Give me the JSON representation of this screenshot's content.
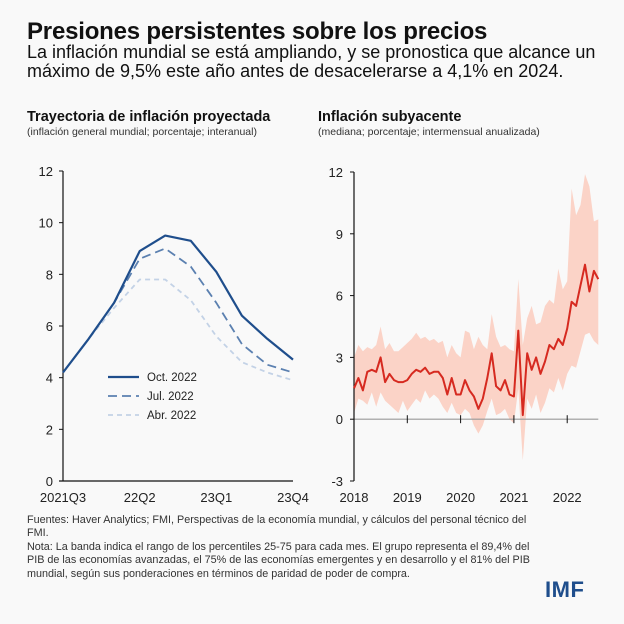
{
  "header": {
    "title": "Presiones persistentes sobre los precios",
    "subtitle": "La inflación mundial se está ampliando, y se pronostica que alcance un máximo de 9,5% este año antes de desacelerarse a 4,1% en 2024."
  },
  "colors": {
    "oct": "#1f4e8c",
    "jul": "#5b80b0",
    "abr": "#c3d2e6",
    "core_line": "#d62a20",
    "core_band": "#fbd3c7",
    "axis": "#111111",
    "zero_line": "#999999",
    "logo": "#1f4e8c"
  },
  "chart_data": [
    {
      "type": "line",
      "title": "Trayectoria de inflación proyectada",
      "subtitle": "(inflación general mundial; porcentaje; interanual)",
      "xlabel": "",
      "ylabel": "",
      "x": [
        "2021Q3",
        "2021Q4",
        "2022Q1",
        "2022Q2",
        "2022Q3",
        "2022Q4",
        "2023Q1",
        "2023Q2",
        "2023Q3",
        "2023Q4"
      ],
      "x_tick_labels": [
        {
          "index": 0,
          "label": "2021Q3"
        },
        {
          "index": 3,
          "label": "22Q2"
        },
        {
          "index": 6,
          "label": "23Q1"
        },
        {
          "index": 9,
          "label": "23Q4"
        }
      ],
      "ylim": [
        0,
        12
      ],
      "y_ticks": [
        0,
        2,
        4,
        6,
        8,
        10,
        12
      ],
      "grid": false,
      "legend_position": "bottom-left",
      "series": [
        {
          "name": "Oct. 2022",
          "style": "solid",
          "values": [
            4.2,
            5.5,
            6.9,
            8.9,
            9.5,
            9.3,
            8.1,
            6.4,
            5.5,
            4.7
          ]
        },
        {
          "name": "Jul. 2022",
          "style": "long-dash",
          "values": [
            4.2,
            5.5,
            6.9,
            8.6,
            9.0,
            8.3,
            6.9,
            5.3,
            4.5,
            4.2
          ]
        },
        {
          "name": "Abr. 2022",
          "style": "short-dash",
          "values": [
            4.2,
            5.5,
            6.7,
            7.8,
            7.8,
            7.0,
            5.6,
            4.6,
            4.2,
            3.9
          ]
        }
      ]
    },
    {
      "type": "area",
      "title": "Inflación subyacente",
      "subtitle": "(mediana; porcentaje; intermensual anualizada)",
      "xlabel": "",
      "ylabel": "",
      "x_start": "2018-01",
      "frequency": "monthly",
      "x_tick_labels": [
        "2018",
        "2019",
        "2020",
        "2021",
        "2022"
      ],
      "ylim": [
        -3,
        12
      ],
      "y_ticks": [
        -3,
        0,
        3,
        6,
        9,
        12
      ],
      "grid": false,
      "series": [
        {
          "name": "Mediana",
          "values": [
            1.5,
            2.0,
            1.4,
            2.3,
            2.4,
            2.3,
            3.0,
            1.8,
            2.2,
            1.9,
            1.8,
            1.8,
            1.9,
            2.2,
            2.4,
            2.3,
            2.5,
            2.2,
            2.3,
            2.3,
            2.0,
            1.2,
            2.0,
            1.2,
            1.2,
            1.9,
            1.4,
            1.1,
            0.5,
            1.0,
            2.0,
            3.2,
            1.6,
            1.4,
            1.9,
            1.2,
            1.1,
            4.3,
            0.2,
            3.2,
            2.4,
            3.0,
            2.2,
            2.8,
            3.6,
            3.4,
            3.9,
            3.6,
            4.4,
            5.7,
            5.5,
            6.5,
            7.5,
            6.2,
            7.2,
            6.8
          ]
        },
        {
          "name": "Percentil 25",
          "values": [
            0.3,
            1.0,
            0.9,
            0.7,
            1.3,
            0.6,
            1.3,
            0.9,
            0.7,
            0.5,
            0.3,
            0.9,
            0.4,
            0.7,
            1.0,
            0.8,
            1.4,
            1.0,
            1.2,
            1.0,
            0.6,
            0.3,
            0.8,
            0.3,
            0.2,
            0.5,
            0.3,
            -0.3,
            -0.7,
            -0.3,
            0.4,
            1.0,
            0.2,
            0.3,
            0.5,
            0.0,
            -0.2,
            1.5,
            -2.0,
            1.0,
            0.5,
            1.2,
            0.3,
            0.8,
            1.5,
            1.3,
            2.0,
            1.4,
            2.2,
            2.6,
            2.5,
            3.3,
            4.1,
            4.2,
            3.8,
            3.6
          ]
        },
        {
          "name": "Percentil 75",
          "values": [
            3.0,
            3.6,
            3.3,
            3.5,
            3.4,
            3.6,
            4.5,
            3.4,
            3.7,
            3.3,
            3.3,
            3.5,
            3.7,
            3.9,
            4.2,
            3.9,
            4.0,
            3.8,
            3.9,
            3.7,
            3.8,
            3.0,
            3.6,
            3.2,
            3.0,
            4.3,
            4.2,
            3.4,
            4.0,
            3.6,
            3.4,
            5.1,
            4.0,
            3.5,
            3.6,
            3.4,
            3.3,
            6.8,
            3.6,
            4.9,
            5.5,
            4.6,
            4.7,
            5.5,
            5.8,
            5.6,
            7.3,
            6.3,
            6.7,
            11.2,
            9.9,
            10.4,
            11.9,
            11.3,
            9.6,
            9.7
          ]
        }
      ]
    }
  ],
  "left_panel": {
    "title": "Trayectoria de inflación proyectada",
    "subtitle": "(inflación general mundial; porcentaje; interanual)"
  },
  "right_panel": {
    "title": "Inflación subyacente",
    "subtitle": "(mediana; porcentaje; intermensual anualizada)"
  },
  "footer": {
    "sources": "Fuentes: Haver Analytics; FMI, Perspectivas de la economía mundial, y cálculos del personal técnico del FMI.",
    "note": "Nota: La banda indica el rango de los percentiles 25-75 para cada mes. El grupo representa el 89,4% del PIB de las economías avanzadas, el 75% de las economías emergentes y en desarrollo y el 81% del PIB mundial, según sus ponderaciones en términos de paridad de poder de compra.",
    "logo": "IMF"
  }
}
